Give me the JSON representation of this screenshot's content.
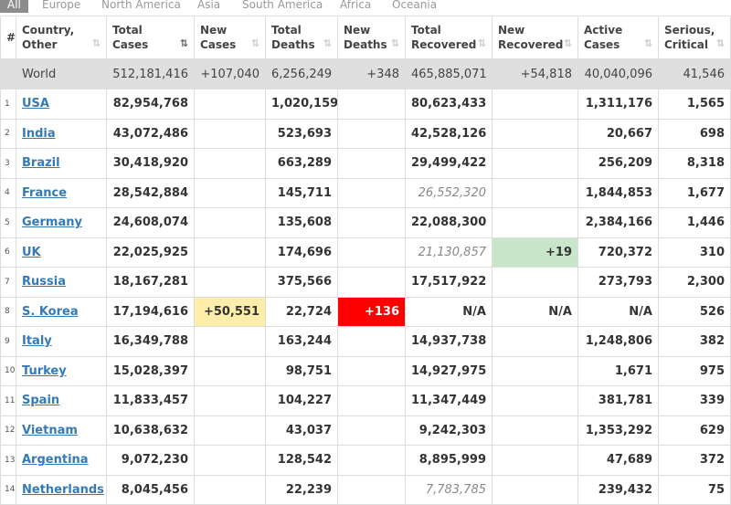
{
  "tabs": [
    "All",
    "Europe",
    "North America",
    "Asia",
    "South America",
    "Africa",
    "Oceania"
  ],
  "table": {
    "header": [
      "#",
      "Country,\nOther",
      "Total\nCases",
      "New\nCases",
      "Total\nDeaths",
      "New\nDeaths",
      "Total\nRecovered",
      "New\nRecovered",
      "Active\nCases",
      "Serious,\nCritical"
    ],
    "world": [
      null,
      "World",
      "512,181,416",
      "+107,040",
      "6,256,249",
      "+348",
      "465,885,071",
      "+54,818",
      "40,040,096",
      "41,546"
    ],
    "rows": [
      [
        "1",
        "USA",
        "82,954,768",
        null,
        "1,020,159",
        null,
        "80,623,433",
        null,
        "1,311,176",
        "1,565"
      ],
      [
        "2",
        "India",
        "43,072,486",
        null,
        "523,693",
        null,
        "42,528,126",
        null,
        "20,667",
        "698"
      ],
      [
        "3",
        "Brazil",
        "30,418,920",
        null,
        "663,289",
        null,
        "29,499,422",
        null,
        "256,209",
        "8,318"
      ],
      [
        "4",
        "France",
        "28,542,884",
        null,
        "145,711",
        null,
        "26,552,320",
        null,
        "1,844,853",
        "1,677"
      ],
      [
        "5",
        "Germany",
        "24,608,074",
        null,
        "135,608",
        null,
        "22,088,300",
        null,
        "2,384,166",
        "1,446"
      ],
      [
        "6",
        "UK",
        "22,025,925",
        null,
        "174,696",
        null,
        "21,130,857",
        "+19",
        "720,372",
        "310"
      ],
      [
        "7",
        "Russia",
        "18,167,281",
        null,
        "375,566",
        null,
        "17,517,922",
        null,
        "273,793",
        "2,300"
      ],
      [
        "8",
        "S. Korea",
        "17,194,616",
        "+50,551",
        "22,724",
        "+136",
        "N/A",
        "N/A",
        "N/A",
        "526"
      ],
      [
        "9",
        "Italy",
        "16,349,788",
        null,
        "163,244",
        null,
        "14,937,738",
        null,
        "1,248,806",
        "382"
      ],
      [
        "10",
        "Turkey",
        "15,028,397",
        null,
        "98,751",
        null,
        "14,927,975",
        null,
        "1,671",
        "975"
      ],
      [
        "11",
        "Spain",
        "11,833,457",
        null,
        "104,227",
        null,
        "11,347,449",
        null,
        "381,781",
        "339"
      ],
      [
        "12",
        "Vietnam",
        "10,638,632",
        null,
        "43,037",
        null,
        "9,242,303",
        null,
        "1,353,292",
        "629"
      ],
      [
        "13",
        "Argentina",
        "9,072,230",
        null,
        "128,542",
        null,
        "8,895,999",
        null,
        "47,689",
        "372"
      ],
      [
        "14",
        "Netherlands",
        "8,045,456",
        null,
        "22,239",
        null,
        "7,783,785",
        null,
        "239,432",
        "75"
      ]
    ]
  }
}
